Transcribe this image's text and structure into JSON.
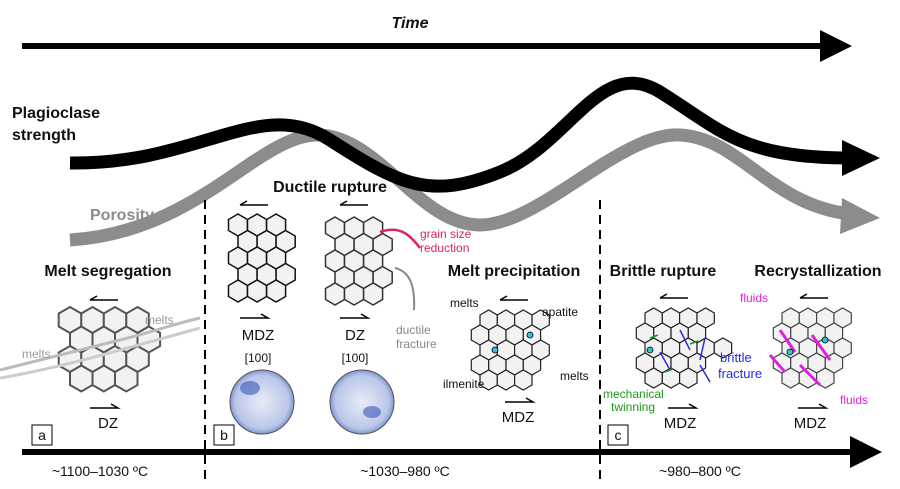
{
  "header": {
    "title": "Time"
  },
  "curves": [
    {
      "label": [
        "Plagioclase",
        "strength"
      ]
    },
    {
      "label": "Porosity"
    }
  ],
  "panels": [
    {
      "letter": "a",
      "title": "Melt segregation",
      "labels": [
        "melts",
        "melts"
      ],
      "zone": "DZ",
      "temperature": "~1100–1030 ºC"
    },
    {
      "letter": "b",
      "title": "Ductile rupture",
      "zones": [
        "MDZ",
        "DZ"
      ],
      "axes": [
        "[100]",
        "[100]"
      ],
      "labels": [
        [
          "grain size",
          "reduction"
        ],
        [
          "ductile",
          "fracture"
        ]
      ],
      "temperature": "~1030–980 ºC"
    },
    {
      "title": "Melt precipitation",
      "labels": [
        "melts",
        "apatite",
        "ilmenite",
        "melts"
      ],
      "zone": "MDZ"
    },
    {
      "letter": "c",
      "title": "Brittle rupture",
      "labels": [
        [
          "brittle",
          "fracture"
        ],
        [
          "mechanical",
          "twinning"
        ]
      ],
      "zone": "MDZ",
      "temperature": "~980–800 ºC"
    },
    {
      "title": "Recrystallization",
      "labels": [
        "fluids",
        "fluids"
      ],
      "zone": "MDZ"
    }
  ]
}
